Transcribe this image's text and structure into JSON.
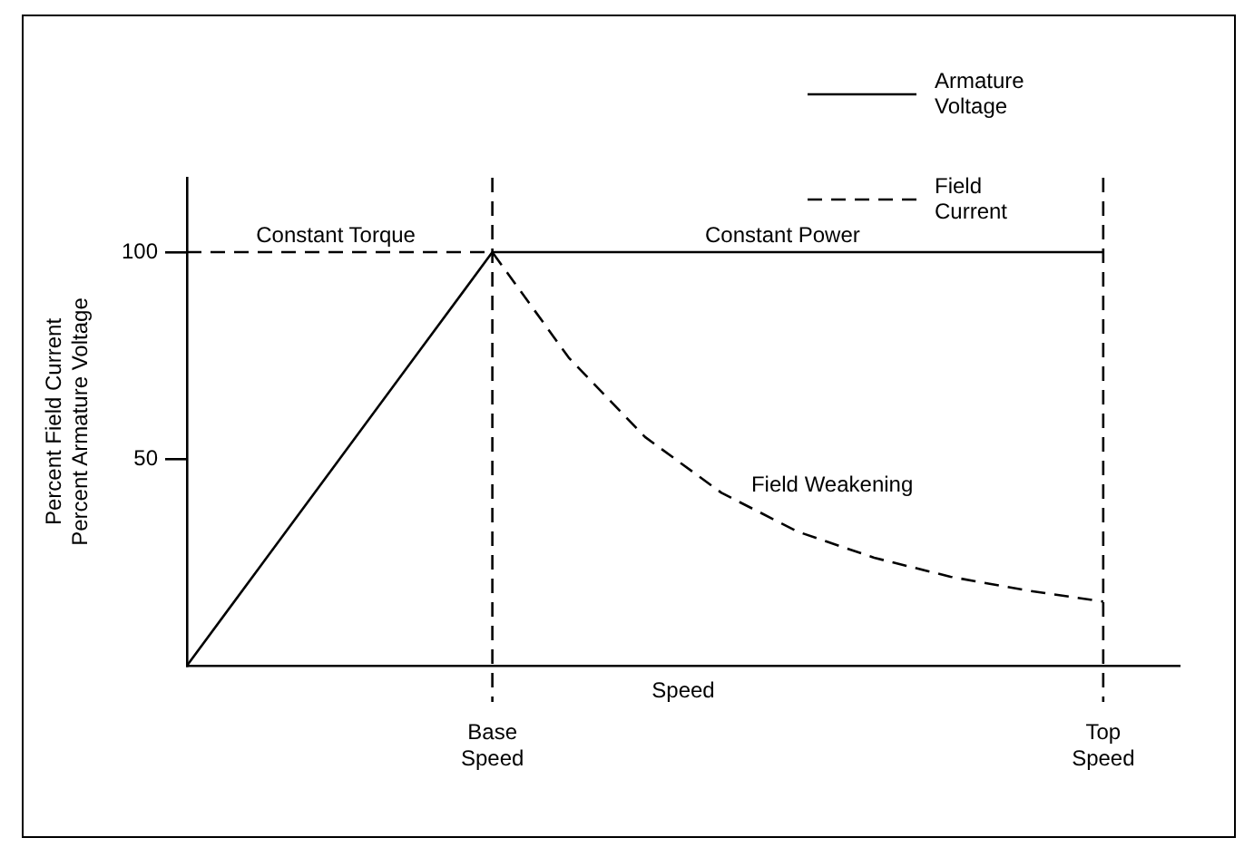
{
  "chart_data": {
    "type": "line",
    "xlabel": "Speed",
    "ylabel": "Percent Field Current\nPercent Armature Voltage",
    "categories": [
      null,
      null,
      null,
      null,
      "Base Speed",
      null,
      null,
      null,
      null,
      null,
      null,
      null,
      "Top Speed",
      null
    ],
    "ylim": [
      0,
      118
    ],
    "yticks": [
      50,
      100
    ],
    "series": [
      {
        "name": "Armature Voltage",
        "color": "#000000",
        "line_style": "solid",
        "values": [
          0,
          25,
          50,
          75,
          100,
          100,
          100,
          100,
          100,
          100,
          100,
          100,
          100,
          null
        ]
      },
      {
        "name": "Field Current",
        "color": "#000000",
        "line_style": "dashed",
        "values": [
          100,
          100,
          100,
          100,
          100,
          74.5,
          55.3,
          41.8,
          32.4,
          26.1,
          21.5,
          18.2,
          15.5,
          null
        ]
      }
    ],
    "ref_lines": [
      {
        "axis": "x",
        "value": "Base Speed",
        "color": "#000000",
        "line_style": "dashed"
      },
      {
        "axis": "x",
        "value": "Top Speed",
        "color": "#000000",
        "line_style": "dashed"
      }
    ],
    "annotations": [
      "Constant Torque",
      "Constant Power",
      "Field Weakening"
    ],
    "grid": false,
    "legend": "top right",
    "marker": "none"
  }
}
